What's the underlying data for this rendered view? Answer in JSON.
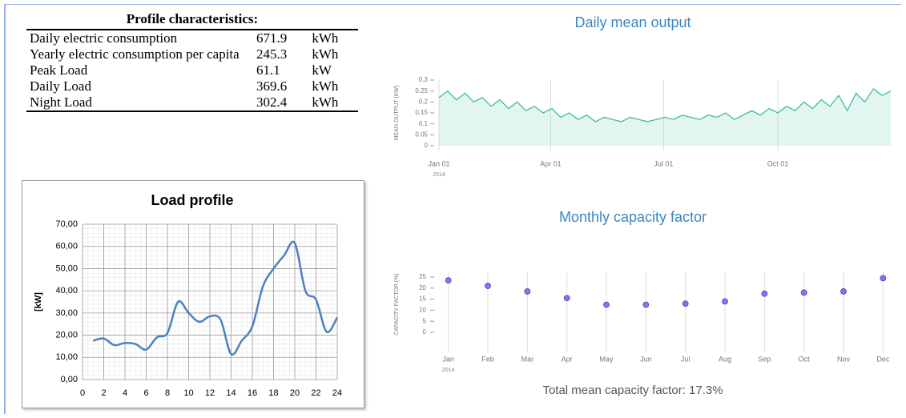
{
  "table": {
    "title": "Profile characteristics:",
    "rows": [
      [
        "Daily electric consumption",
        "671.9",
        "kWh"
      ],
      [
        "Yearly electric consumption per capita",
        "245.3",
        "kWh"
      ],
      [
        "Peak Load",
        "61.1",
        "kW"
      ],
      [
        "Daily Load",
        "369.6",
        "kWh"
      ],
      [
        "Night Load",
        "302.4",
        "kWh"
      ]
    ]
  },
  "chart_data": [
    {
      "type": "line",
      "title": "Load profile",
      "y_label": "[kW]",
      "color": "#4f81bd",
      "grid": true,
      "x": [
        1,
        2,
        3,
        4,
        5,
        6,
        7,
        8,
        9,
        10,
        11,
        12,
        13,
        14,
        15,
        16,
        17,
        18,
        19,
        20,
        21,
        22,
        23,
        24
      ],
      "values": [
        17.5,
        18.5,
        15.5,
        16.5,
        16,
        13.5,
        19,
        21,
        35,
        30,
        26,
        28.5,
        27,
        11.5,
        17.5,
        24,
        42,
        50,
        56,
        61.5,
        40,
        36,
        21.5,
        28
      ],
      "xlim": [
        0,
        24
      ],
      "xticks": [
        0,
        2,
        4,
        6,
        8,
        10,
        12,
        14,
        16,
        18,
        20,
        22,
        24
      ],
      "ylim": [
        0,
        70
      ],
      "yticks": [
        {
          "value": 0,
          "label": "0,00"
        },
        {
          "value": 10,
          "label": "10,00"
        },
        {
          "value": 20,
          "label": "20,00"
        },
        {
          "value": 30,
          "label": "30,00"
        },
        {
          "value": 40,
          "label": "40,00"
        },
        {
          "value": 50,
          "label": "50,00"
        },
        {
          "value": 60,
          "label": "60,00"
        },
        {
          "value": 70,
          "label": "70,00"
        }
      ]
    },
    {
      "type": "area",
      "title": "Daily mean output",
      "y_label": "MEAN OUTPUT (KW)",
      "color": "#3fbf9f",
      "x_sublabel": "2014",
      "x": [
        "2014-01-01",
        "2014-01-08",
        "2014-01-15",
        "2014-01-22",
        "2014-01-29",
        "2014-02-05",
        "2014-02-12",
        "2014-02-19",
        "2014-02-26",
        "2014-03-05",
        "2014-03-12",
        "2014-03-19",
        "2014-03-26",
        "2014-04-02",
        "2014-04-09",
        "2014-04-16",
        "2014-04-23",
        "2014-04-30",
        "2014-05-07",
        "2014-05-14",
        "2014-05-21",
        "2014-05-28",
        "2014-06-04",
        "2014-06-11",
        "2014-06-18",
        "2014-06-25",
        "2014-07-02",
        "2014-07-09",
        "2014-07-16",
        "2014-07-23",
        "2014-07-30",
        "2014-08-06",
        "2014-08-13",
        "2014-08-20",
        "2014-08-27",
        "2014-09-03",
        "2014-09-10",
        "2014-09-17",
        "2014-09-24",
        "2014-10-01",
        "2014-10-08",
        "2014-10-15",
        "2014-10-22",
        "2014-10-29",
        "2014-11-05",
        "2014-11-12",
        "2014-11-19",
        "2014-11-26",
        "2014-12-03",
        "2014-12-10",
        "2014-12-17",
        "2014-12-24",
        "2014-12-31"
      ],
      "values": [
        0.22,
        0.25,
        0.21,
        0.24,
        0.2,
        0.22,
        0.18,
        0.21,
        0.17,
        0.2,
        0.16,
        0.18,
        0.15,
        0.17,
        0.13,
        0.15,
        0.12,
        0.14,
        0.11,
        0.13,
        0.12,
        0.11,
        0.13,
        0.12,
        0.11,
        0.12,
        0.13,
        0.12,
        0.14,
        0.13,
        0.12,
        0.14,
        0.13,
        0.15,
        0.12,
        0.14,
        0.16,
        0.14,
        0.17,
        0.15,
        0.18,
        0.16,
        0.2,
        0.17,
        0.21,
        0.18,
        0.23,
        0.16,
        0.24,
        0.2,
        0.26,
        0.23,
        0.25
      ],
      "xlim": [
        "2014-01-01",
        "2014-12-31"
      ],
      "xticks": [
        {
          "value": "2014-01-01",
          "label": "Jan 01"
        },
        {
          "value": "2014-04-01",
          "label": "Apr 01"
        },
        {
          "value": "2014-07-01",
          "label": "Jul 01"
        },
        {
          "value": "2014-10-01",
          "label": "Oct 01"
        }
      ],
      "ylim": [
        0,
        0.3
      ],
      "yticks": [
        0,
        0.05,
        0.1,
        0.15,
        0.2,
        0.25,
        0.3
      ]
    },
    {
      "type": "scatter",
      "title": "Monthly capacity factor",
      "y_label": "CAPACITY FACTOR (%)",
      "color": "#7b7bf0",
      "x_sublabel": "2014",
      "categories": [
        "Jan",
        "Feb",
        "Mar",
        "Apr",
        "May",
        "Jun",
        "Jul",
        "Aug",
        "Sep",
        "Oct",
        "Nov",
        "Dec"
      ],
      "values": [
        23.5,
        21,
        18.5,
        15.5,
        12.5,
        12.5,
        13,
        14,
        17.5,
        18,
        18.5,
        24.5
      ],
      "ylim": [
        0,
        25
      ],
      "yticks": [
        0,
        5,
        10,
        15,
        20,
        25
      ],
      "footer": "Total mean capacity factor: 17.3%"
    }
  ]
}
